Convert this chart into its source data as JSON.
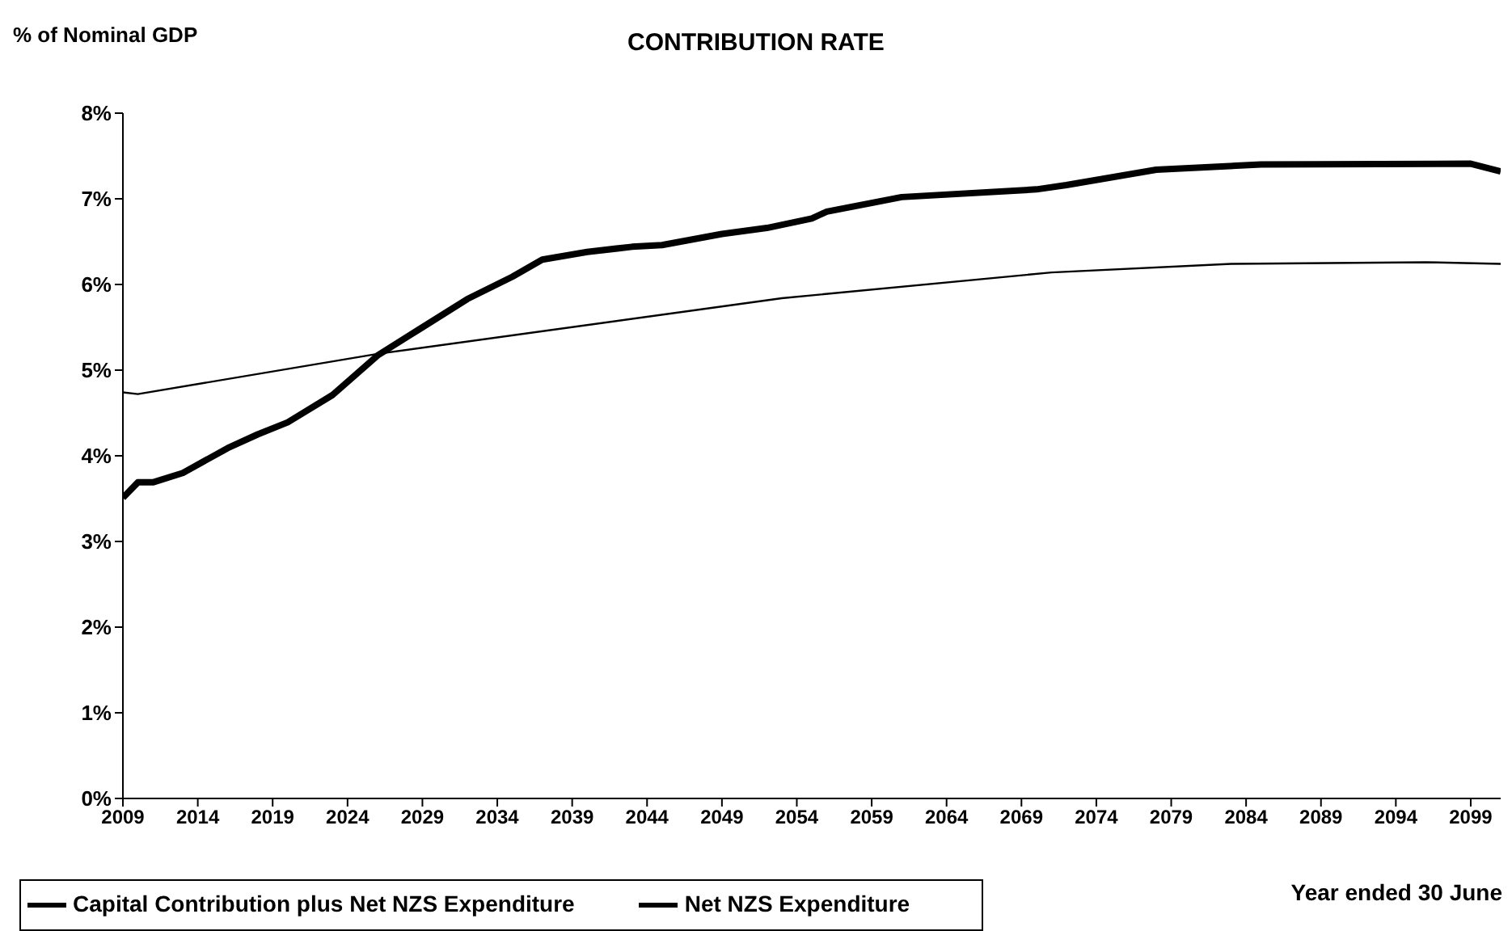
{
  "chart_data": {
    "type": "line",
    "title": "CONTRIBUTION RATE",
    "ylabel": "% of Nominal GDP",
    "xlabel": "Year ended 30 June",
    "xlim": [
      2009,
      2101
    ],
    "xticks": [
      2009,
      2014,
      2019,
      2024,
      2029,
      2034,
      2039,
      2044,
      2049,
      2054,
      2059,
      2064,
      2069,
      2074,
      2079,
      2084,
      2089,
      2094,
      2099
    ],
    "ylim": [
      0,
      8
    ],
    "yticks": [
      {
        "value": 0,
        "label": "0%"
      },
      {
        "value": 1,
        "label": "1%"
      },
      {
        "value": 2,
        "label": "2%"
      },
      {
        "value": 3,
        "label": "3%"
      },
      {
        "value": 4,
        "label": "4%"
      },
      {
        "value": 5,
        "label": "5%"
      },
      {
        "value": 6,
        "label": "6%"
      },
      {
        "value": 7,
        "label": "7%"
      },
      {
        "value": 8,
        "label": "8%"
      }
    ],
    "grid": false,
    "legend": "bottom left",
    "marker": "none",
    "line_style": "solid",
    "series": [
      {
        "name": "Net NZS Expenditure",
        "color": "#000000",
        "x": [
          2009,
          2010,
          2011,
          2013,
          2016,
          2018,
          2020,
          2023,
          2026,
          2029,
          2032,
          2035,
          2037,
          2040,
          2043,
          2045,
          2049,
          2052,
          2055,
          2056,
          2061,
          2070,
          2072,
          2078,
          2085,
          2099,
          2101
        ],
        "values": [
          3.51,
          3.69,
          3.69,
          3.8,
          4.09,
          4.25,
          4.39,
          4.71,
          5.17,
          5.5,
          5.83,
          6.09,
          6.29,
          6.38,
          6.44,
          6.46,
          6.59,
          6.66,
          6.77,
          6.85,
          7.02,
          7.11,
          7.16,
          7.34,
          7.4,
          7.41,
          7.32
        ]
      },
      {
        "name": "Capital Contribution plus Net NZS Expenditure",
        "color": "#000000",
        "x": [
          2009,
          2010,
          2026,
          2053,
          2071,
          2083,
          2096,
          2101
        ],
        "values": [
          4.74,
          4.72,
          5.19,
          5.84,
          6.14,
          6.24,
          6.26,
          6.24
        ]
      }
    ]
  }
}
